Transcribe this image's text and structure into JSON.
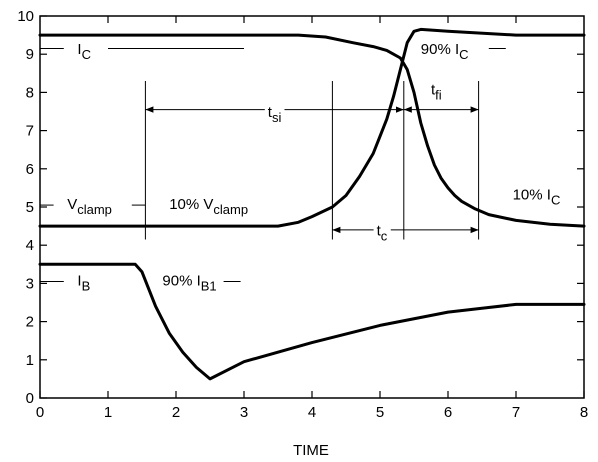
{
  "chart_data": {
    "type": "line",
    "title": "",
    "xlabel": "TIME",
    "ylabel": "",
    "xlim": [
      0,
      8
    ],
    "ylim": [
      0,
      10
    ],
    "xticks": [
      "0",
      "1",
      "2",
      "3",
      "4",
      "5",
      "6",
      "7",
      "8"
    ],
    "yticks": [
      "0",
      "1",
      "2",
      "3",
      "4",
      "5",
      "6",
      "7",
      "8",
      "9",
      "10"
    ],
    "grid": false,
    "legend": "none",
    "series": [
      {
        "name": "",
        "x": [
          0,
          3.8,
          4.2,
          4.6,
          4.9,
          5.1,
          5.3,
          5.4,
          5.5,
          5.6,
          5.7,
          5.8,
          5.9,
          6.0,
          6.1,
          6.2,
          6.4,
          6.6,
          7.0,
          7.5,
          8.0
        ],
        "values": [
          9.5,
          9.5,
          9.45,
          9.3,
          9.2,
          9.1,
          8.9,
          8.6,
          8.0,
          7.2,
          6.6,
          6.1,
          5.75,
          5.5,
          5.3,
          5.15,
          4.95,
          4.8,
          4.65,
          4.55,
          4.5
        ]
      },
      {
        "name": "",
        "x": [
          0,
          3.5,
          3.8,
          4.0,
          4.3,
          4.5,
          4.7,
          4.9,
          5.1,
          5.2,
          5.3,
          5.4,
          5.5,
          5.6,
          6.0,
          7.0,
          8.0
        ],
        "values": [
          4.5,
          4.5,
          4.6,
          4.75,
          5.0,
          5.3,
          5.8,
          6.4,
          7.3,
          7.9,
          8.6,
          9.3,
          9.6,
          9.65,
          9.6,
          9.5,
          9.5
        ]
      },
      {
        "name": "",
        "x": [
          0,
          1.4,
          1.5,
          1.7,
          1.9,
          2.1,
          2.3,
          2.5,
          3.0,
          4.0,
          5.0,
          6.0,
          6.5,
          7.0,
          8.0
        ],
        "values": [
          3.5,
          3.5,
          3.3,
          2.4,
          1.7,
          1.2,
          0.8,
          0.5,
          0.95,
          1.45,
          1.9,
          2.25,
          2.35,
          2.45,
          2.45
        ]
      }
    ],
    "annotations": {
      "ic": {
        "main": "I",
        "sub": "C"
      },
      "pct90_ic": {
        "main": "90% I",
        "sub": "C"
      },
      "tsi": {
        "main": "t",
        "sub": "si"
      },
      "tfi": {
        "main": "t",
        "sub": "fi"
      },
      "vclamp": {
        "main": "V",
        "sub": "clamp"
      },
      "pct10_vclamp": {
        "main": "10% V",
        "sub": "clamp"
      },
      "pct10_ic": {
        "main": "10% I",
        "sub": "C"
      },
      "tc": {
        "main": "t",
        "sub": "c"
      },
      "ib": {
        "main": "I",
        "sub": "B"
      },
      "pct90_ib1": {
        "main": "90% I",
        "sub": "B1"
      }
    }
  }
}
